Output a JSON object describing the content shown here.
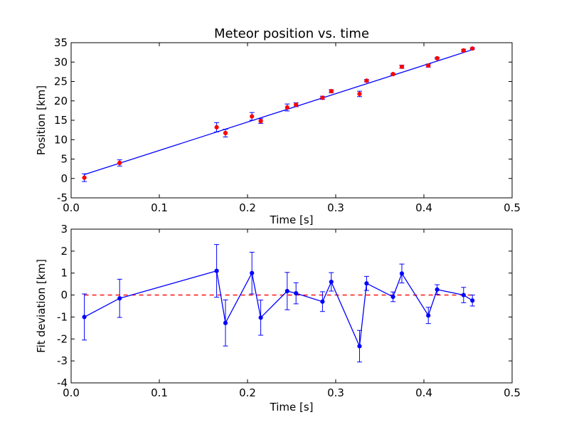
{
  "chart_data": [
    {
      "type": "scatter",
      "title": "Meteor position vs. time",
      "xlabel": "Time [s]",
      "ylabel": "Position [km]",
      "xlim": [
        0.0,
        0.5
      ],
      "ylim": [
        -5,
        35
      ],
      "x_ticks": [
        "0.0",
        "0.1",
        "0.2",
        "0.3",
        "0.4",
        "0.5"
      ],
      "y_ticks": [
        "-5",
        "0",
        "5",
        "10",
        "15",
        "20",
        "25",
        "30",
        "35"
      ],
      "grid": false,
      "series": [
        {
          "kind": "errorbar-points",
          "color": "#ff0000",
          "points": [
            {
              "x": 0.015,
              "y": 0.2,
              "err": 1.0
            },
            {
              "x": 0.055,
              "y": 4.0,
              "err": 0.8
            },
            {
              "x": 0.165,
              "y": 13.2,
              "err": 1.2
            },
            {
              "x": 0.175,
              "y": 11.7,
              "err": 1.0
            },
            {
              "x": 0.205,
              "y": 16.0,
              "err": 1.0
            },
            {
              "x": 0.215,
              "y": 14.8,
              "err": 0.6
            },
            {
              "x": 0.245,
              "y": 18.3,
              "err": 0.9
            },
            {
              "x": 0.255,
              "y": 19.0,
              "err": 0.5
            },
            {
              "x": 0.285,
              "y": 20.8,
              "err": 0.4
            },
            {
              "x": 0.295,
              "y": 22.5,
              "err": 0.4
            },
            {
              "x": 0.327,
              "y": 21.8,
              "err": 0.7
            },
            {
              "x": 0.335,
              "y": 25.2,
              "err": 0.3
            },
            {
              "x": 0.365,
              "y": 26.9,
              "err": 0.2
            },
            {
              "x": 0.375,
              "y": 28.8,
              "err": 0.4
            },
            {
              "x": 0.405,
              "y": 29.1,
              "err": 0.4
            },
            {
              "x": 0.415,
              "y": 31.0,
              "err": 0.2
            },
            {
              "x": 0.445,
              "y": 33.0,
              "err": 0.3
            },
            {
              "x": 0.455,
              "y": 33.5,
              "err": 0.2
            }
          ]
        },
        {
          "kind": "fit-line",
          "color": "#0000ff",
          "x": [
            0.015,
            0.455
          ],
          "y": [
            1.0,
            33.2
          ]
        }
      ]
    },
    {
      "type": "line",
      "xlabel": "Time [s]",
      "ylabel": "Fit deviation [km]",
      "xlim": [
        0.0,
        0.5
      ],
      "ylim": [
        -4,
        3
      ],
      "x_ticks": [
        "0.0",
        "0.1",
        "0.2",
        "0.3",
        "0.4",
        "0.5"
      ],
      "y_ticks": [
        "-4",
        "-3",
        "-2",
        "-1",
        "0",
        "1",
        "2",
        "3"
      ],
      "grid": false,
      "series": [
        {
          "kind": "errorbar-line",
          "color": "#0000ff",
          "points": [
            {
              "x": 0.015,
              "y": -1.0,
              "err": 1.05
            },
            {
              "x": 0.055,
              "y": -0.15,
              "err": 0.87
            },
            {
              "x": 0.165,
              "y": 1.1,
              "err": 1.2
            },
            {
              "x": 0.175,
              "y": -1.27,
              "err": 1.05
            },
            {
              "x": 0.205,
              "y": 1.0,
              "err": 0.95
            },
            {
              "x": 0.215,
              "y": -1.03,
              "err": 0.8
            },
            {
              "x": 0.245,
              "y": 0.18,
              "err": 0.85
            },
            {
              "x": 0.255,
              "y": 0.08,
              "err": 0.48
            },
            {
              "x": 0.285,
              "y": -0.3,
              "err": 0.45
            },
            {
              "x": 0.295,
              "y": 0.6,
              "err": 0.42
            },
            {
              "x": 0.327,
              "y": -2.33,
              "err": 0.72
            },
            {
              "x": 0.335,
              "y": 0.53,
              "err": 0.32
            },
            {
              "x": 0.365,
              "y": -0.08,
              "err": 0.22
            },
            {
              "x": 0.375,
              "y": 0.98,
              "err": 0.43
            },
            {
              "x": 0.405,
              "y": -0.93,
              "err": 0.37
            },
            {
              "x": 0.415,
              "y": 0.25,
              "err": 0.22
            },
            {
              "x": 0.445,
              "y": 0.0,
              "err": 0.35
            },
            {
              "x": 0.455,
              "y": -0.25,
              "err": 0.25
            }
          ]
        },
        {
          "kind": "zero-line",
          "color": "#ff0000",
          "style": "dashed",
          "y": 0
        }
      ]
    }
  ]
}
